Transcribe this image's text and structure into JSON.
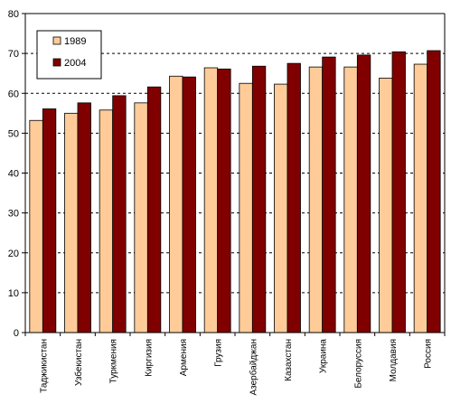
{
  "chart_data": {
    "type": "bar",
    "title": "",
    "xlabel": "",
    "ylabel": "",
    "ylim": [
      0,
      80
    ],
    "yticks": [
      0,
      10,
      20,
      30,
      40,
      50,
      60,
      70,
      80
    ],
    "grid": true,
    "legend": "top-left",
    "categories": [
      "Таджикистан",
      "Узбекистан",
      "Туркмения",
      "Киргизия",
      "Армения",
      "Грузия",
      "Азербайджан",
      "Казахстан",
      "Украина",
      "Белоруссия",
      "Молдавия",
      "Россия"
    ],
    "series": [
      {
        "name": "1989",
        "color": "#FFCC99",
        "values": [
          53.2,
          55.0,
          55.8,
          57.6,
          64.3,
          66.4,
          62.5,
          62.3,
          66.6,
          66.6,
          63.8,
          67.3
        ]
      },
      {
        "name": "2004",
        "color": "#800000",
        "values": [
          56.1,
          57.6,
          59.4,
          61.6,
          64.1,
          66.1,
          66.8,
          67.5,
          69.1,
          69.6,
          70.4,
          70.7
        ]
      }
    ]
  }
}
